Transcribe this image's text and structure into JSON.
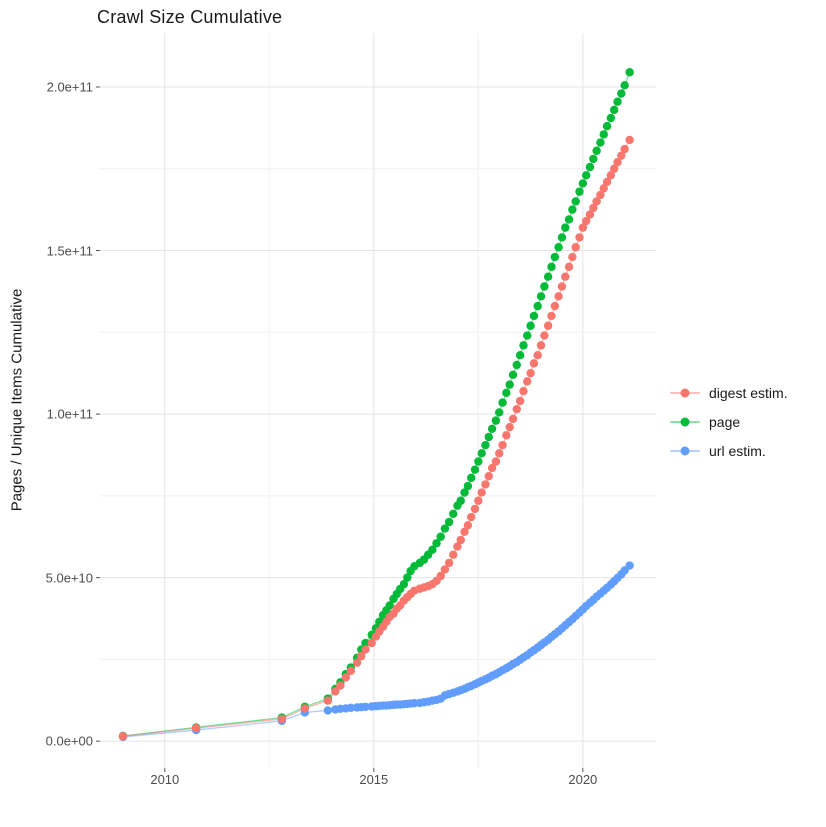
{
  "title": "Crawl Size Cumulative",
  "axes": {
    "y_title": "Pages / Unique Items Cumulative",
    "x_tick_labels": [
      "2010",
      "2015",
      "2020"
    ],
    "x_tick_values": [
      2010,
      2015,
      2020
    ],
    "x_minor": [
      2012.5,
      2017.5
    ],
    "y_tick_labels": [
      "0.0e+00",
      "5.0e+10",
      "1.0e+11",
      "1.5e+11",
      "2.0e+11"
    ],
    "y_tick_values": [
      0,
      50,
      100,
      150,
      200
    ],
    "y_minor": [
      25,
      75,
      125,
      175
    ],
    "xlim": [
      2008.45,
      2021.75
    ],
    "ylim": [
      -8.2,
      216.5
    ]
  },
  "colors": {
    "digest": "#f8766d",
    "page": "#00ba38",
    "url": "#619cff",
    "grid_major": "#e4e4e4",
    "grid_minor": "#f1f1f1",
    "tick_mark": "#555555",
    "axis_text": "#4d4d4d"
  },
  "legend": [
    {
      "label": "digest estim.",
      "color": "#f8766d"
    },
    {
      "label": "page",
      "color": "#00ba38"
    },
    {
      "label": "url estim.",
      "color": "#619cff"
    }
  ],
  "chart_data": {
    "type": "line",
    "title": "Crawl Size Cumulative",
    "xlabel": "",
    "ylabel": "Pages / Unique Items Cumulative",
    "value_unit": "billions of pages (1e9)",
    "x_unit": "year (decimal)",
    "xlim": [
      2008.45,
      2021.75
    ],
    "ylim_e9": [
      -8.2,
      216.5
    ],
    "grid": true,
    "legend_position": "right",
    "series": [
      {
        "name": "digest estim.",
        "color": "#f8766d",
        "points": [
          [
            2009.0,
            1.5
          ],
          [
            2010.75,
            4.0
          ],
          [
            2012.8,
            6.8
          ],
          [
            2013.35,
            10.0
          ],
          [
            2013.9,
            12.4
          ],
          [
            2014.08,
            15.2
          ],
          [
            2014.2,
            17.0
          ],
          [
            2014.33,
            19.5
          ],
          [
            2014.45,
            21.5
          ],
          [
            2014.6,
            24.0
          ],
          [
            2014.7,
            26.0
          ],
          [
            2014.8,
            28.0
          ],
          [
            2014.95,
            30.0
          ],
          [
            2015.05,
            32.0
          ],
          [
            2015.13,
            33.5
          ],
          [
            2015.22,
            35.0
          ],
          [
            2015.3,
            36.5
          ],
          [
            2015.38,
            38.0
          ],
          [
            2015.47,
            39.0
          ],
          [
            2015.55,
            40.5
          ],
          [
            2015.63,
            41.5
          ],
          [
            2015.72,
            43.0
          ],
          [
            2015.8,
            44.0
          ],
          [
            2015.88,
            45.0
          ],
          [
            2015.97,
            46.0
          ],
          [
            2016.1,
            46.6
          ],
          [
            2016.2,
            47.0
          ],
          [
            2016.3,
            47.4
          ],
          [
            2016.4,
            48.0
          ],
          [
            2016.5,
            49.0
          ],
          [
            2016.6,
            50.5
          ],
          [
            2016.7,
            52.5
          ],
          [
            2016.8,
            54.5
          ],
          [
            2016.9,
            57.0
          ],
          [
            2017.0,
            59.5
          ],
          [
            2017.08,
            61.5
          ],
          [
            2017.17,
            64.0
          ],
          [
            2017.25,
            66.0
          ],
          [
            2017.33,
            68.5
          ],
          [
            2017.42,
            71.0
          ],
          [
            2017.5,
            73.5
          ],
          [
            2017.58,
            76.0
          ],
          [
            2017.67,
            78.5
          ],
          [
            2017.75,
            81.0
          ],
          [
            2017.83,
            83.5
          ],
          [
            2017.92,
            85.5
          ],
          [
            2018.0,
            88.0
          ],
          [
            2018.08,
            90.5
          ],
          [
            2018.17,
            93.5
          ],
          [
            2018.25,
            96.0
          ],
          [
            2018.33,
            98.5
          ],
          [
            2018.42,
            101.5
          ],
          [
            2018.5,
            104.0
          ],
          [
            2018.58,
            107.0
          ],
          [
            2018.67,
            110.0
          ],
          [
            2018.75,
            112.5
          ],
          [
            2018.83,
            115.5
          ],
          [
            2018.92,
            118.0
          ],
          [
            2019.0,
            121.0
          ],
          [
            2019.08,
            124.0
          ],
          [
            2019.17,
            127.0
          ],
          [
            2019.25,
            130.0
          ],
          [
            2019.33,
            133.0
          ],
          [
            2019.42,
            136.0
          ],
          [
            2019.5,
            139.0
          ],
          [
            2019.58,
            142.0
          ],
          [
            2019.67,
            145.0
          ],
          [
            2019.75,
            148.0
          ],
          [
            2019.83,
            151.0
          ],
          [
            2019.92,
            154.0
          ],
          [
            2020.0,
            157.0
          ],
          [
            2020.08,
            159.0
          ],
          [
            2020.17,
            161.0
          ],
          [
            2020.25,
            163.0
          ],
          [
            2020.33,
            165.0
          ],
          [
            2020.42,
            167.0
          ],
          [
            2020.5,
            169.0
          ],
          [
            2020.58,
            171.0
          ],
          [
            2020.67,
            173.0
          ],
          [
            2020.75,
            175.0
          ],
          [
            2020.83,
            177.0
          ],
          [
            2020.92,
            179.0
          ],
          [
            2021.0,
            181.0
          ],
          [
            2021.12,
            183.8
          ]
        ]
      },
      {
        "name": "page",
        "color": "#00ba38",
        "points": [
          [
            2009.0,
            1.6
          ],
          [
            2010.75,
            4.2
          ],
          [
            2012.8,
            7.2
          ],
          [
            2013.35,
            10.5
          ],
          [
            2013.9,
            13.0
          ],
          [
            2014.08,
            16.0
          ],
          [
            2014.2,
            18.0
          ],
          [
            2014.33,
            20.5
          ],
          [
            2014.45,
            22.5
          ],
          [
            2014.6,
            25.5
          ],
          [
            2014.7,
            28.0
          ],
          [
            2014.8,
            30.0
          ],
          [
            2014.95,
            32.5
          ],
          [
            2015.05,
            34.5
          ],
          [
            2015.13,
            36.5
          ],
          [
            2015.22,
            38.5
          ],
          [
            2015.3,
            40.0
          ],
          [
            2015.38,
            41.5
          ],
          [
            2015.47,
            43.5
          ],
          [
            2015.55,
            45.0
          ],
          [
            2015.63,
            46.5
          ],
          [
            2015.72,
            48.0
          ],
          [
            2015.8,
            50.0
          ],
          [
            2015.88,
            52.0
          ],
          [
            2015.97,
            53.5
          ],
          [
            2016.1,
            54.5
          ],
          [
            2016.2,
            55.5
          ],
          [
            2016.3,
            57.0
          ],
          [
            2016.4,
            58.5
          ],
          [
            2016.5,
            60.5
          ],
          [
            2016.6,
            62.5
          ],
          [
            2016.7,
            65.0
          ],
          [
            2016.8,
            67.0
          ],
          [
            2016.9,
            69.5
          ],
          [
            2017.0,
            72.0
          ],
          [
            2017.08,
            73.5
          ],
          [
            2017.17,
            76.0
          ],
          [
            2017.25,
            78.0
          ],
          [
            2017.33,
            80.5
          ],
          [
            2017.42,
            83.0
          ],
          [
            2017.5,
            85.5
          ],
          [
            2017.58,
            88.0
          ],
          [
            2017.67,
            90.5
          ],
          [
            2017.75,
            93.0
          ],
          [
            2017.83,
            95.5
          ],
          [
            2017.92,
            98.0
          ],
          [
            2018.0,
            100.5
          ],
          [
            2018.08,
            103.5
          ],
          [
            2018.17,
            106.5
          ],
          [
            2018.25,
            109.0
          ],
          [
            2018.33,
            112.0
          ],
          [
            2018.42,
            115.0
          ],
          [
            2018.5,
            118.0
          ],
          [
            2018.58,
            121.0
          ],
          [
            2018.67,
            124.0
          ],
          [
            2018.75,
            127.0
          ],
          [
            2018.83,
            130.0
          ],
          [
            2018.92,
            133.0
          ],
          [
            2019.0,
            136.0
          ],
          [
            2019.08,
            139.0
          ],
          [
            2019.17,
            142.0
          ],
          [
            2019.25,
            145.0
          ],
          [
            2019.33,
            148.0
          ],
          [
            2019.42,
            151.0
          ],
          [
            2019.5,
            154.0
          ],
          [
            2019.58,
            157.0
          ],
          [
            2019.67,
            159.5
          ],
          [
            2019.75,
            162.5
          ],
          [
            2019.83,
            165.0
          ],
          [
            2019.92,
            168.0
          ],
          [
            2020.0,
            170.5
          ],
          [
            2020.08,
            173.0
          ],
          [
            2020.17,
            175.5
          ],
          [
            2020.25,
            178.0
          ],
          [
            2020.33,
            180.5
          ],
          [
            2020.42,
            183.0
          ],
          [
            2020.5,
            185.5
          ],
          [
            2020.58,
            188.0
          ],
          [
            2020.67,
            190.5
          ],
          [
            2020.75,
            193.0
          ],
          [
            2020.83,
            195.5
          ],
          [
            2020.92,
            198.0
          ],
          [
            2021.0,
            200.5
          ],
          [
            2021.12,
            204.5
          ]
        ]
      },
      {
        "name": "url estim.",
        "color": "#619cff",
        "points": [
          [
            2009.0,
            1.3
          ],
          [
            2010.75,
            3.4
          ],
          [
            2012.8,
            6.2
          ],
          [
            2013.35,
            8.8
          ],
          [
            2013.9,
            9.4
          ],
          [
            2014.08,
            9.7
          ],
          [
            2014.2,
            9.9
          ],
          [
            2014.33,
            10.0
          ],
          [
            2014.45,
            10.2
          ],
          [
            2014.6,
            10.3
          ],
          [
            2014.7,
            10.4
          ],
          [
            2014.8,
            10.5
          ],
          [
            2014.95,
            10.6
          ],
          [
            2015.05,
            10.7
          ],
          [
            2015.13,
            10.8
          ],
          [
            2015.22,
            10.9
          ],
          [
            2015.3,
            10.9
          ],
          [
            2015.38,
            11.0
          ],
          [
            2015.47,
            11.1
          ],
          [
            2015.55,
            11.2
          ],
          [
            2015.63,
            11.2
          ],
          [
            2015.72,
            11.3
          ],
          [
            2015.8,
            11.4
          ],
          [
            2015.88,
            11.5
          ],
          [
            2015.97,
            11.6
          ],
          [
            2016.1,
            11.7
          ],
          [
            2016.2,
            11.9
          ],
          [
            2016.3,
            12.1
          ],
          [
            2016.4,
            12.4
          ],
          [
            2016.5,
            12.6
          ],
          [
            2016.6,
            13.0
          ],
          [
            2016.7,
            14.0
          ],
          [
            2016.8,
            14.4
          ],
          [
            2016.9,
            14.8
          ],
          [
            2017.0,
            15.2
          ],
          [
            2017.08,
            15.6
          ],
          [
            2017.17,
            16.0
          ],
          [
            2017.25,
            16.5
          ],
          [
            2017.33,
            16.9
          ],
          [
            2017.42,
            17.4
          ],
          [
            2017.5,
            17.9
          ],
          [
            2017.58,
            18.4
          ],
          [
            2017.67,
            18.9
          ],
          [
            2017.75,
            19.4
          ],
          [
            2017.83,
            20.0
          ],
          [
            2017.92,
            20.5
          ],
          [
            2018.0,
            21.1
          ],
          [
            2018.08,
            21.7
          ],
          [
            2018.17,
            22.3
          ],
          [
            2018.25,
            22.9
          ],
          [
            2018.33,
            23.6
          ],
          [
            2018.42,
            24.2
          ],
          [
            2018.5,
            24.9
          ],
          [
            2018.58,
            25.6
          ],
          [
            2018.67,
            26.3
          ],
          [
            2018.75,
            27.1
          ],
          [
            2018.83,
            27.8
          ],
          [
            2018.92,
            28.6
          ],
          [
            2019.0,
            29.4
          ],
          [
            2019.08,
            30.2
          ],
          [
            2019.17,
            31.0
          ],
          [
            2019.25,
            31.9
          ],
          [
            2019.33,
            32.7
          ],
          [
            2019.42,
            33.6
          ],
          [
            2019.5,
            34.5
          ],
          [
            2019.58,
            35.4
          ],
          [
            2019.67,
            36.4
          ],
          [
            2019.75,
            37.3
          ],
          [
            2019.83,
            38.3
          ],
          [
            2019.92,
            39.3
          ],
          [
            2020.0,
            40.3
          ],
          [
            2020.08,
            41.3
          ],
          [
            2020.17,
            42.3
          ],
          [
            2020.25,
            43.2
          ],
          [
            2020.33,
            44.2
          ],
          [
            2020.42,
            45.1
          ],
          [
            2020.5,
            46.0
          ],
          [
            2020.58,
            46.9
          ],
          [
            2020.67,
            47.9
          ],
          [
            2020.75,
            48.9
          ],
          [
            2020.83,
            49.9
          ],
          [
            2020.92,
            51.0
          ],
          [
            2021.0,
            52.2
          ],
          [
            2021.12,
            53.7
          ]
        ]
      }
    ]
  }
}
